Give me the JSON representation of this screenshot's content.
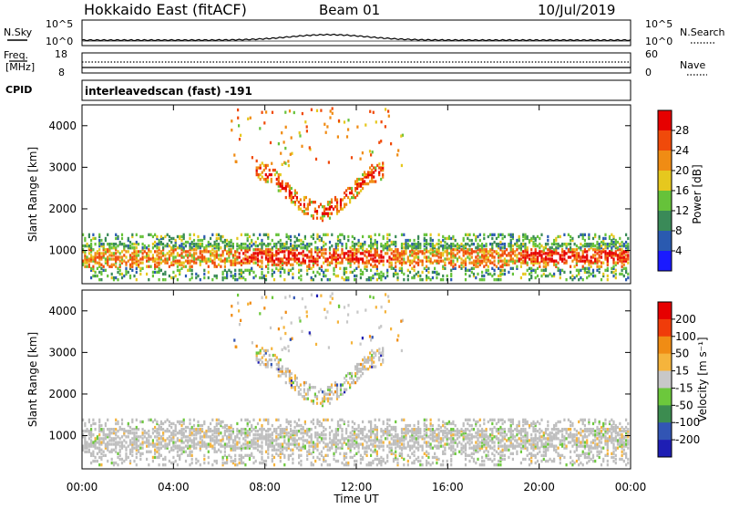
{
  "header": {
    "station": "Hokkaido East (fitACF)",
    "beam": "Beam 01",
    "date": "10/Jul/2019"
  },
  "strip": {
    "nsky_label": "N.Sky",
    "nsearch_label": "N.Search",
    "freq_label_1": "Freq.",
    "freq_label_2": "[MHz]",
    "cpid_label": "CPID",
    "nave_label": "Nave",
    "noise_ticks_left": [
      "10^5",
      "10^0"
    ],
    "noise_ticks_right": [
      "10^5",
      "10^0"
    ],
    "freq_ticks_left": [
      "18",
      "8"
    ],
    "nave_ticks_right": [
      "60",
      "0"
    ],
    "cpid_text": "interleavedscan (fast) -191"
  },
  "colors": {
    "power_scale": [
      "#1a1aff",
      "#2a5ab0",
      "#3a8a58",
      "#66c23a",
      "#e6c81e",
      "#f08c14",
      "#f04a0a",
      "#e60000"
    ],
    "velocity_scale": [
      "#1e1eb4",
      "#3255b4",
      "#3c8c50",
      "#6cc83c",
      "#c8c8c8",
      "#f5b43c",
      "#f08c14",
      "#f03c0a",
      "#e60000"
    ],
    "ground_scatter": "#bebebe"
  },
  "chart_data": [
    {
      "type": "heatmap",
      "panel": "power",
      "ylabel": "Slant Range [km]",
      "yticks": [
        "1000",
        "2000",
        "3000",
        "4000"
      ],
      "colorbar_label": "Power [dB]",
      "colorbar_ticks": [
        "4",
        "8",
        "12",
        "16",
        "20",
        "24",
        "28"
      ],
      "range_km": [
        200,
        4500
      ],
      "time_range_h": [
        0,
        24
      ]
    },
    {
      "type": "heatmap",
      "panel": "velocity",
      "ylabel": "Slant Range [km]",
      "yticks": [
        "1000",
        "2000",
        "3000",
        "4000"
      ],
      "colorbar_label": "Velocity [m s⁻¹]",
      "colorbar_ticks": [
        "200",
        "100",
        "50",
        "15",
        "-15",
        "-50",
        "-100",
        "-200"
      ],
      "range_km": [
        200,
        4500
      ],
      "time_range_h": [
        0,
        24
      ]
    }
  ],
  "xaxis": {
    "ticks": [
      "00:00",
      "04:00",
      "08:00",
      "12:00",
      "16:00",
      "20:00",
      "00:00"
    ],
    "label": "Time UT"
  }
}
